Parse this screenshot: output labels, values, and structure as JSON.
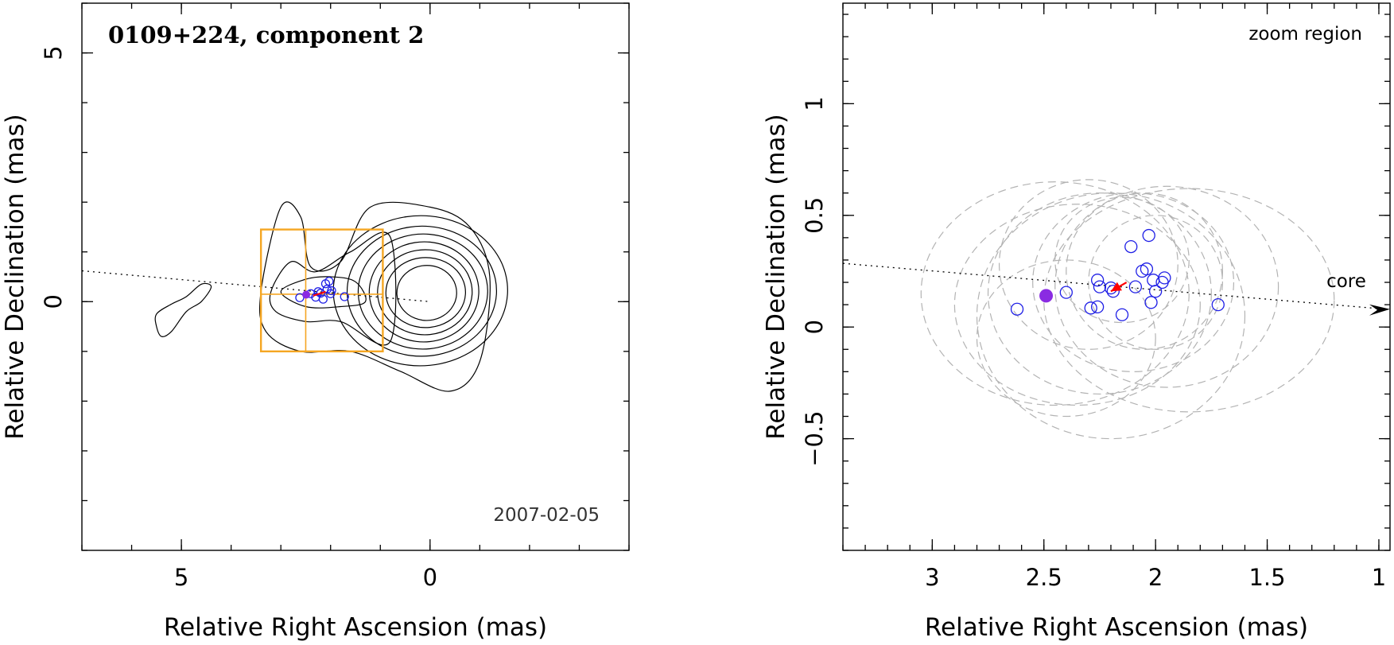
{
  "chart_data": [
    {
      "type": "contour",
      "title": "0109+224, component 2",
      "date_label": "2007-02-05",
      "xlabel": "Relative Right Ascension (mas)",
      "ylabel": "Relative Declination (mas)",
      "xlim": [
        7.0,
        -4.0
      ],
      "ylim": [
        -5.0,
        6.0
      ],
      "x_ticks": [
        {
          "value": 5,
          "label": "5"
        },
        {
          "value": 0,
          "label": "0"
        }
      ],
      "y_ticks": [
        {
          "value": 5,
          "label": "5"
        },
        {
          "value": 0,
          "label": "0"
        }
      ],
      "jet_axis": [
        [
          7.0,
          0.62
        ],
        [
          0.0,
          0.0
        ]
      ],
      "main_contours": {
        "center": [
          0.0,
          0.15
        ],
        "radii": [
          [
            0.6,
            0.55
          ],
          [
            0.8,
            0.7
          ],
          [
            0.95,
            0.85
          ],
          [
            1.1,
            1.0
          ],
          [
            1.3,
            1.15
          ],
          [
            1.5,
            1.3
          ],
          [
            1.75,
            1.5
          ]
        ],
        "note": "nested closed contours around the core"
      },
      "extended_contours": [
        {
          "name": "outer",
          "points": [
            [
              3.4,
              0.2
            ],
            [
              3.0,
              1.9
            ],
            [
              2.6,
              1.7
            ],
            [
              2.4,
              0.7
            ],
            [
              1.8,
              0.8
            ],
            [
              1.2,
              1.9
            ],
            [
              0.0,
              1.9
            ],
            [
              -0.8,
              1.5
            ],
            [
              -1.2,
              0.5
            ],
            [
              -1.0,
              -1.2
            ],
            [
              -0.4,
              -1.8
            ],
            [
              0.6,
              -1.4
            ],
            [
              1.6,
              -1.0
            ],
            [
              2.6,
              -1.0
            ],
            [
              3.3,
              -0.6
            ]
          ]
        },
        {
          "name": "second",
          "points": [
            [
              3.2,
              0.2
            ],
            [
              2.8,
              0.8
            ],
            [
              2.3,
              0.6
            ],
            [
              1.6,
              1.0
            ],
            [
              0.8,
              1.3
            ],
            [
              0.8,
              -0.8
            ],
            [
              1.8,
              -0.4
            ],
            [
              2.5,
              -0.4
            ],
            [
              3.1,
              -0.2
            ]
          ]
        },
        {
          "name": "third",
          "points": [
            [
              3.0,
              0.2
            ],
            [
              2.5,
              0.45
            ],
            [
              2.0,
              0.5
            ],
            [
              1.5,
              0.4
            ],
            [
              1.3,
              0.0
            ],
            [
              1.8,
              -0.1
            ],
            [
              2.5,
              -0.1
            ]
          ]
        },
        {
          "name": "blob",
          "points": [
            [
              5.5,
              -0.5
            ],
            [
              5.4,
              -0.7
            ],
            [
              5.2,
              -0.6
            ],
            [
              4.9,
              -0.2
            ],
            [
              4.6,
              0.0
            ],
            [
              4.4,
              0.3
            ],
            [
              4.6,
              0.35
            ],
            [
              4.9,
              0.1
            ],
            [
              5.2,
              -0.05
            ],
            [
              5.5,
              -0.25
            ]
          ]
        }
      ],
      "zoom_box": {
        "x": [
          3.4,
          0.95
        ],
        "y": [
          -1.0,
          1.45
        ]
      },
      "crosshair": {
        "x": 2.5,
        "y": 0.15
      },
      "markers": [
        {
          "kind": "open_circle",
          "x": 2.62,
          "y": 0.08
        },
        {
          "kind": "open_circle",
          "x": 2.4,
          "y": 0.16
        },
        {
          "kind": "open_circle",
          "x": 2.3,
          "y": 0.09
        },
        {
          "kind": "open_circle",
          "x": 2.25,
          "y": 0.2
        },
        {
          "kind": "open_circle",
          "x": 2.2,
          "y": 0.17
        },
        {
          "kind": "open_circle",
          "x": 2.15,
          "y": 0.05
        },
        {
          "kind": "open_circle",
          "x": 2.1,
          "y": 0.36
        },
        {
          "kind": "open_circle",
          "x": 2.07,
          "y": 0.25
        },
        {
          "kind": "open_circle",
          "x": 2.03,
          "y": 0.41
        },
        {
          "kind": "open_circle",
          "x": 2.0,
          "y": 0.16
        },
        {
          "kind": "open_circle",
          "x": 1.98,
          "y": 0.22
        },
        {
          "kind": "open_circle",
          "x": 1.72,
          "y": 0.1
        },
        {
          "kind": "filled_circle",
          "x": 2.49,
          "y": 0.14
        }
      ]
    },
    {
      "type": "scatter",
      "title": "zoom region",
      "xlabel": "Relative Right Ascension (mas)",
      "ylabel": "Relative Declination (mas)",
      "xlim": [
        3.4,
        0.95
      ],
      "ylim": [
        -1.0,
        1.45
      ],
      "x_ticks": [
        {
          "value": 3,
          "label": "3"
        },
        {
          "value": 2.5,
          "label": "2.5"
        },
        {
          "value": 2,
          "label": "2"
        },
        {
          "value": 1.5,
          "label": "1.5"
        },
        {
          "value": 1,
          "label": "1"
        }
      ],
      "y_ticks": [
        {
          "value": 1,
          "label": "1"
        },
        {
          "value": 0.5,
          "label": "0.5"
        },
        {
          "value": 0,
          "label": "0"
        },
        {
          "value": -0.5,
          "label": "−0.5"
        }
      ],
      "core_label": "core",
      "jet_axis": [
        [
          3.4,
          0.285
        ],
        [
          0.95,
          0.08
        ]
      ],
      "fit_ellipses": [
        {
          "cx": 2.45,
          "cy": 0.15,
          "rx": 0.6,
          "ry": 0.5
        },
        {
          "cx": 2.35,
          "cy": 0.1,
          "rx": 0.55,
          "ry": 0.45
        },
        {
          "cx": 2.25,
          "cy": 0.15,
          "rx": 0.5,
          "ry": 0.45
        },
        {
          "cx": 2.2,
          "cy": 0.05,
          "rx": 0.6,
          "ry": 0.55
        },
        {
          "cx": 2.1,
          "cy": 0.2,
          "rx": 0.45,
          "ry": 0.4
        },
        {
          "cx": 2.05,
          "cy": 0.25,
          "rx": 0.35,
          "ry": 0.35
        },
        {
          "cx": 2.0,
          "cy": 0.2,
          "rx": 0.3,
          "ry": 0.3
        },
        {
          "cx": 1.95,
          "cy": 0.18,
          "rx": 0.5,
          "ry": 0.45
        },
        {
          "cx": 1.85,
          "cy": 0.12,
          "rx": 0.65,
          "ry": 0.5
        },
        {
          "cx": 2.3,
          "cy": 0.28,
          "rx": 0.4,
          "ry": 0.38
        },
        {
          "cx": 2.15,
          "cy": 0.3,
          "rx": 0.3,
          "ry": 0.28
        },
        {
          "cx": 2.4,
          "cy": -0.05,
          "rx": 0.4,
          "ry": 0.35
        }
      ],
      "points": [
        {
          "kind": "open_circle",
          "x": 2.62,
          "y": 0.08
        },
        {
          "kind": "open_circle",
          "x": 2.4,
          "y": 0.155
        },
        {
          "kind": "open_circle",
          "x": 2.29,
          "y": 0.085
        },
        {
          "kind": "open_circle",
          "x": 2.26,
          "y": 0.09
        },
        {
          "kind": "open_circle",
          "x": 2.26,
          "y": 0.21
        },
        {
          "kind": "open_circle",
          "x": 2.25,
          "y": 0.18
        },
        {
          "kind": "open_circle",
          "x": 2.2,
          "y": 0.175
        },
        {
          "kind": "open_circle",
          "x": 2.19,
          "y": 0.16
        },
        {
          "kind": "open_circle",
          "x": 2.15,
          "y": 0.055
        },
        {
          "kind": "open_circle",
          "x": 2.11,
          "y": 0.36
        },
        {
          "kind": "open_circle",
          "x": 2.09,
          "y": 0.18
        },
        {
          "kind": "open_circle",
          "x": 2.06,
          "y": 0.25
        },
        {
          "kind": "open_circle",
          "x": 2.04,
          "y": 0.26
        },
        {
          "kind": "open_circle",
          "x": 2.03,
          "y": 0.41
        },
        {
          "kind": "open_circle",
          "x": 2.02,
          "y": 0.11
        },
        {
          "kind": "open_circle",
          "x": 2.01,
          "y": 0.21
        },
        {
          "kind": "open_circle",
          "x": 2.0,
          "y": 0.16
        },
        {
          "kind": "open_circle",
          "x": 1.97,
          "y": 0.2
        },
        {
          "kind": "open_circle",
          "x": 1.96,
          "y": 0.22
        },
        {
          "kind": "open_circle",
          "x": 1.72,
          "y": 0.1
        },
        {
          "kind": "filled_circle",
          "x": 2.49,
          "y": 0.14
        }
      ],
      "velocity_vector": {
        "from": [
          2.13,
          0.2
        ],
        "to": [
          2.2,
          0.16
        ]
      }
    }
  ],
  "colors": {
    "axes": "#000000",
    "contours": "#000000",
    "zoom_box": "#f5a623",
    "open_circles": "#1f1fe6",
    "filled_circle": "#8a2be2",
    "velocity_vector": "#ff0000",
    "fit_ellipses": "#b3b3b3",
    "date_label": "#333333"
  }
}
